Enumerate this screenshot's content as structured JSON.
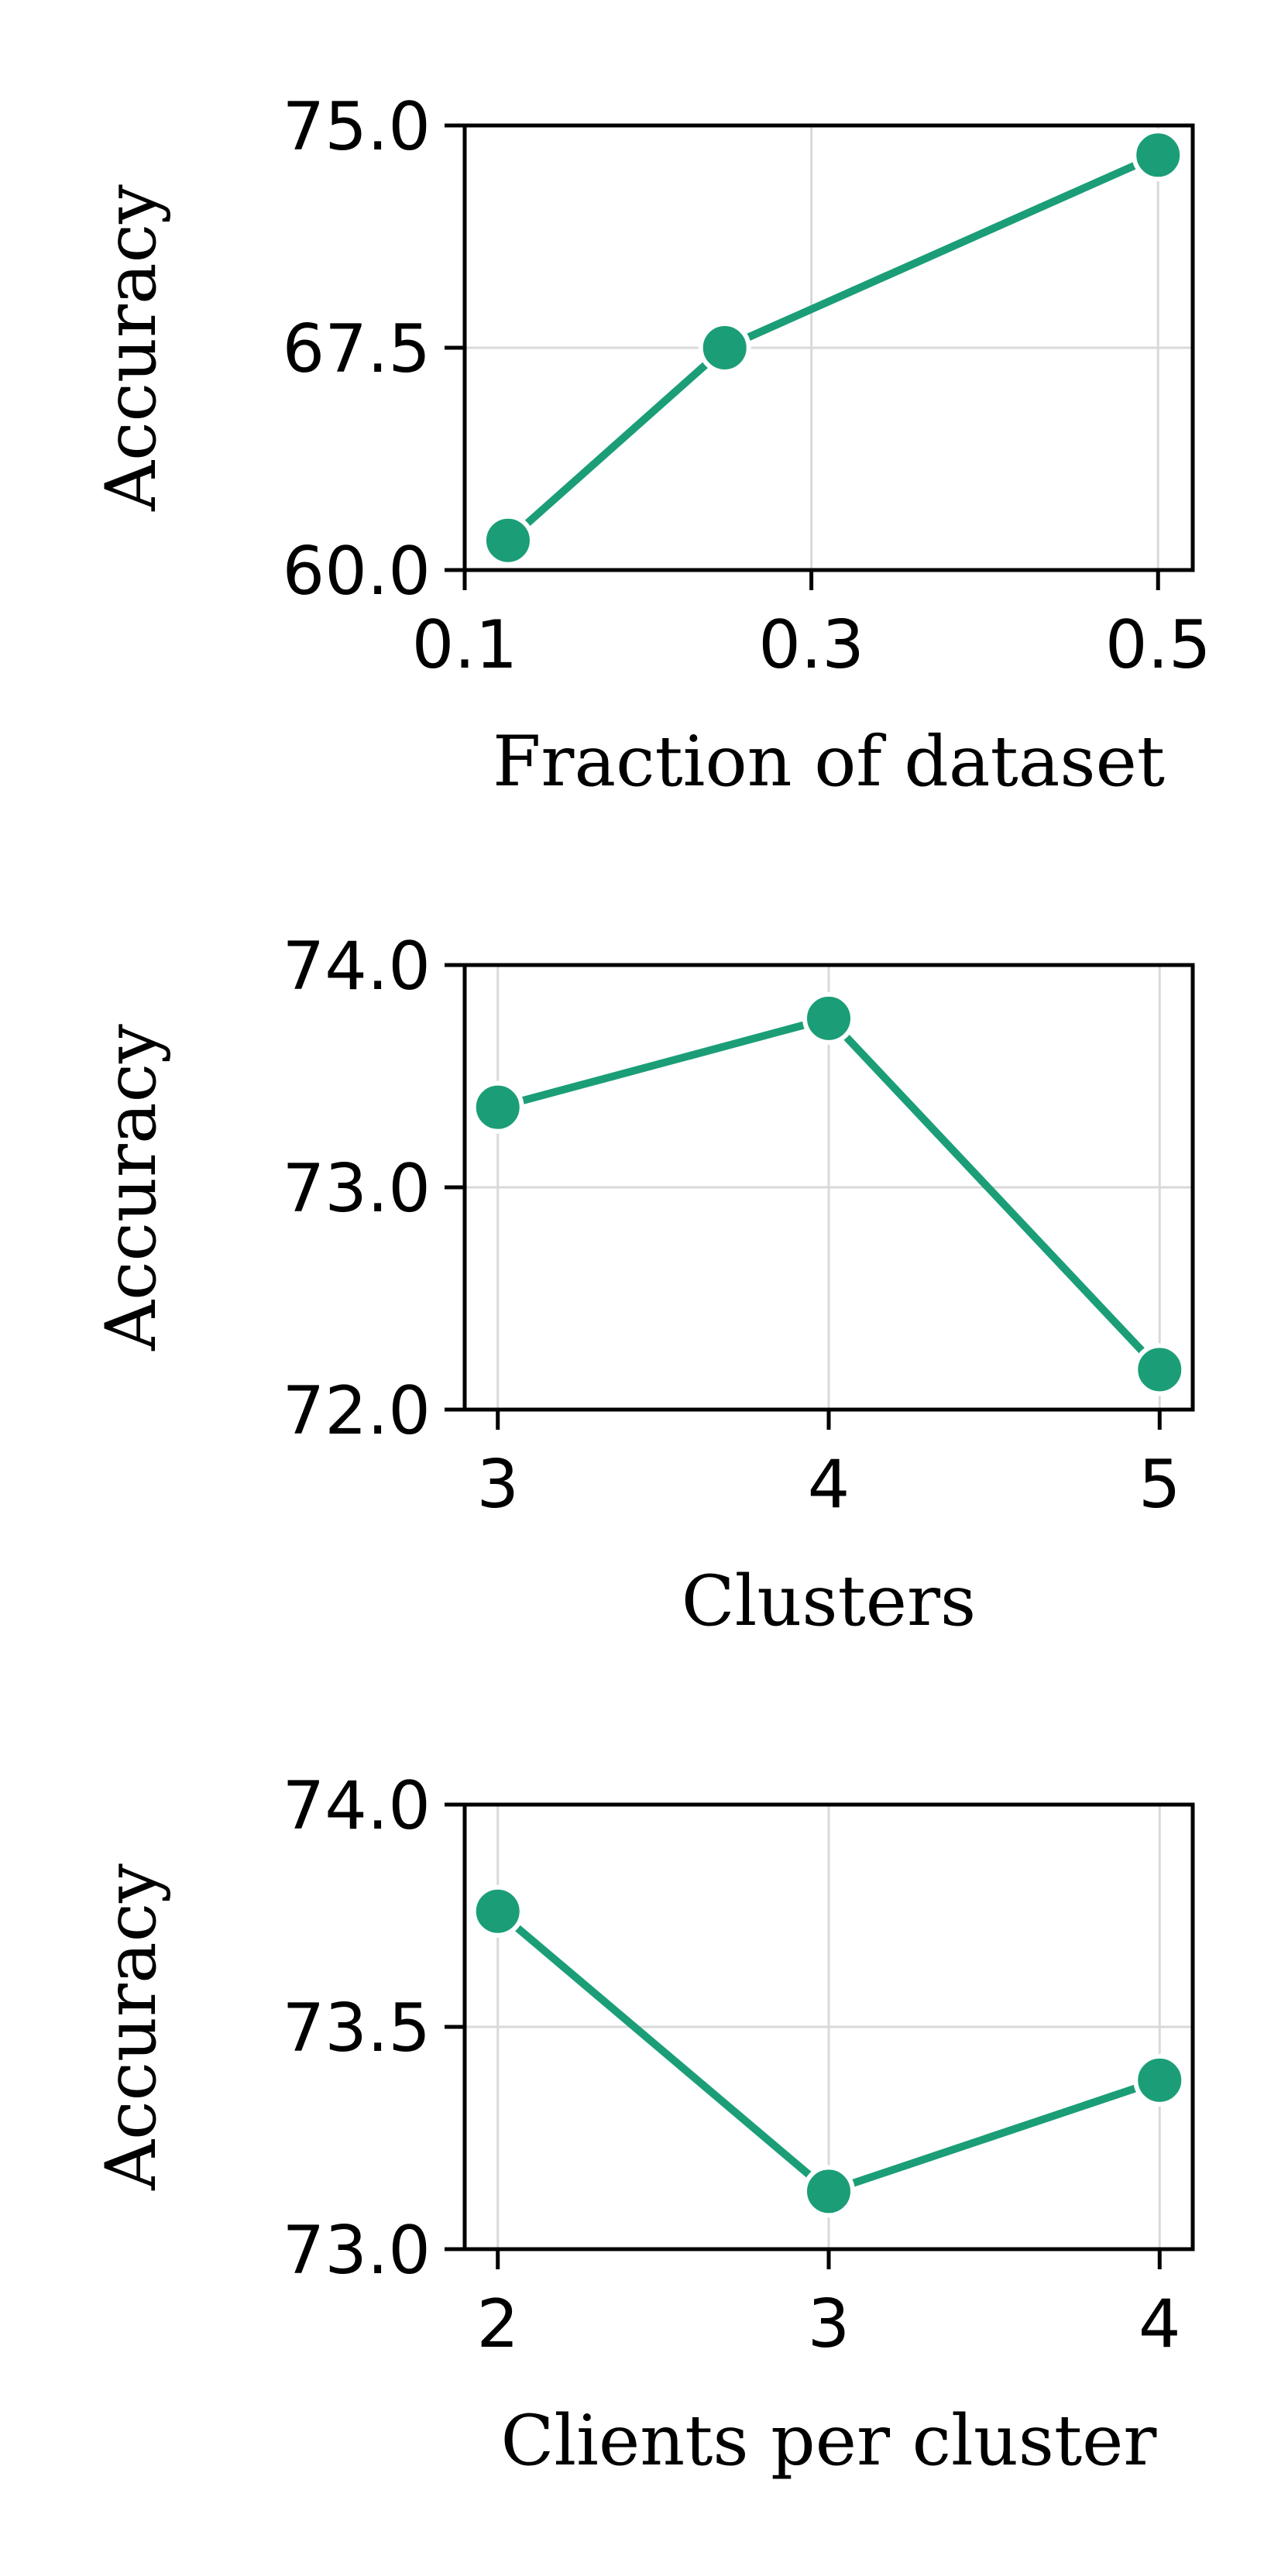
{
  "colors": {
    "series": "#1b9e77",
    "marker_edge": "#ffffff",
    "axes": "#000000",
    "grid": "#d9d9d9"
  },
  "chart_data": [
    {
      "type": "line",
      "title": "",
      "xlabel": "Fraction of dataset",
      "ylabel": "Accuracy",
      "x": [
        0.125,
        0.25,
        0.5
      ],
      "series": [
        {
          "values": [
            61.0,
            67.5,
            74.0
          ]
        }
      ],
      "xlim": [
        0.1,
        0.52
      ],
      "ylim": [
        60.0,
        75.0
      ],
      "xticks": [
        0.1,
        0.3,
        0.5
      ],
      "xtick_labels": [
        "0.1",
        "0.3",
        "0.5"
      ],
      "yticks": [
        60.0,
        67.5,
        75.0
      ],
      "ytick_labels": [
        "60.0",
        "67.5",
        "75.0"
      ],
      "grid": true
    },
    {
      "type": "line",
      "title": "",
      "xlabel": "Clusters",
      "ylabel": "Accuracy",
      "x": [
        3,
        4,
        5
      ],
      "series": [
        {
          "values": [
            73.36,
            73.76,
            72.18
          ]
        }
      ],
      "xlim": [
        2.9,
        5.1
      ],
      "ylim": [
        72.0,
        74.0
      ],
      "xticks": [
        3,
        4,
        5
      ],
      "xtick_labels": [
        "3",
        "4",
        "5"
      ],
      "yticks": [
        72.0,
        73.0,
        74.0
      ],
      "ytick_labels": [
        "72.0",
        "73.0",
        "74.0"
      ],
      "grid": true
    },
    {
      "type": "line",
      "title": "",
      "xlabel": "Clients per cluster",
      "ylabel": "Accuracy",
      "x": [
        2,
        3,
        4
      ],
      "series": [
        {
          "values": [
            73.76,
            73.13,
            73.38
          ]
        }
      ],
      "xlim": [
        1.9,
        4.1
      ],
      "ylim": [
        73.0,
        74.0
      ],
      "xticks": [
        2,
        3,
        4
      ],
      "xtick_labels": [
        "2",
        "3",
        "4"
      ],
      "yticks": [
        73.0,
        73.5,
        74.0
      ],
      "ytick_labels": [
        "73.0",
        "73.5",
        "74.0"
      ],
      "grid": true
    }
  ]
}
